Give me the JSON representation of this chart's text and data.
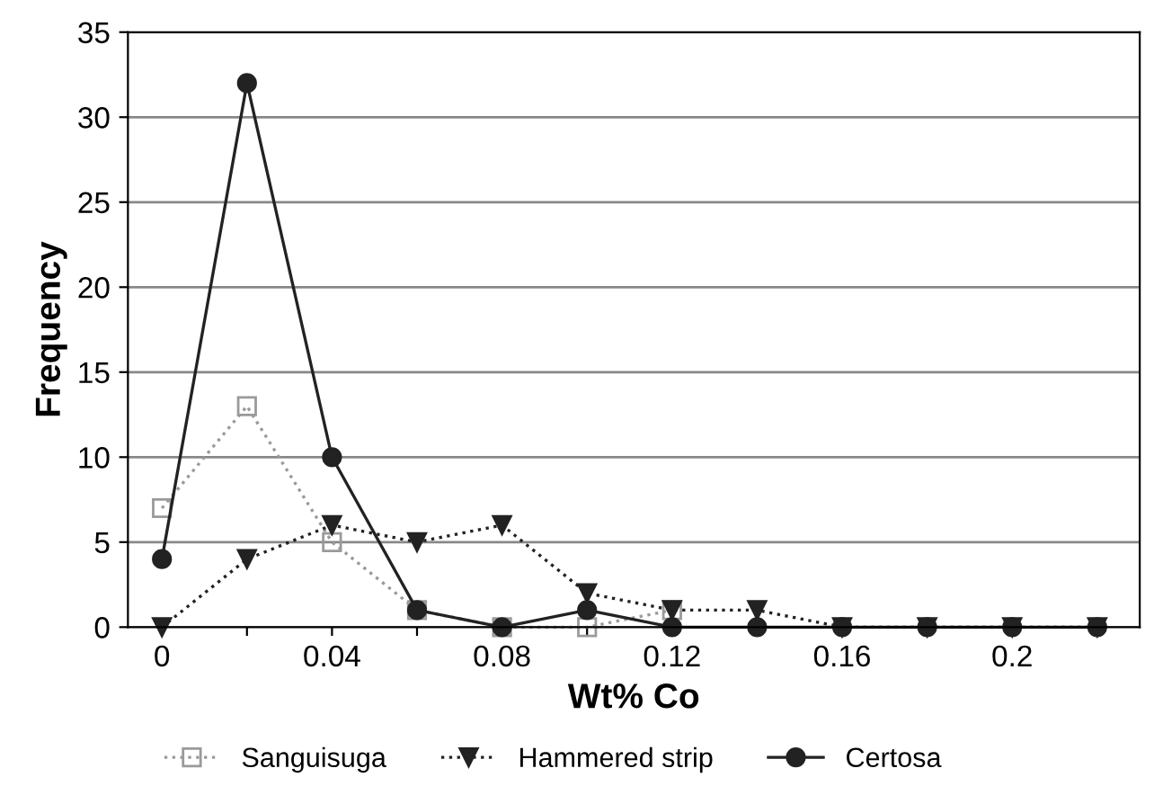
{
  "chart_data": {
    "type": "line",
    "xlabel": "Wt% Co",
    "ylabel": "Frequency",
    "categories": [
      "0",
      null,
      "0.04",
      null,
      "0.08",
      null,
      "0.12",
      null,
      "0.16",
      null,
      "0.2",
      null
    ],
    "series": [
      {
        "name": "Sanguisuga",
        "color": "#9a9a9a",
        "marker": "square",
        "line_style": "dotted",
        "values": [
          7,
          13,
          5,
          1,
          0,
          0,
          1,
          null,
          null,
          null,
          null,
          null
        ]
      },
      {
        "name": "Hammered strip",
        "color": "#222222",
        "marker": "triangle",
        "line_style": "dotted",
        "values": [
          0,
          4,
          6,
          5,
          6,
          2,
          1,
          1,
          0,
          0,
          0,
          0
        ]
      },
      {
        "name": "Certosa",
        "color": "#222222",
        "marker": "circle",
        "line_style": "solid",
        "values": [
          4,
          32,
          10,
          1,
          0,
          1,
          0,
          0,
          0,
          0,
          0,
          0
        ]
      }
    ],
    "ylim": [
      0,
      35
    ],
    "yticks": [
      0,
      5,
      10,
      15,
      20,
      25,
      30,
      35
    ],
    "grid": "y",
    "legend": "bottom"
  }
}
